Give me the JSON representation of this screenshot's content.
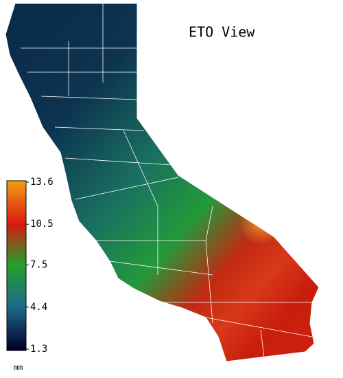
{
  "title": "ETO View",
  "colorbar": {
    "range": [
      1.3,
      13.6
    ],
    "ticks": [
      13.6,
      10.5,
      7.5,
      4.4,
      1.3
    ],
    "unit": "mm",
    "colors": [
      "#f39a10",
      "#d81a10",
      "#20a02a",
      "#1e6a8a",
      "#00002e"
    ]
  }
}
